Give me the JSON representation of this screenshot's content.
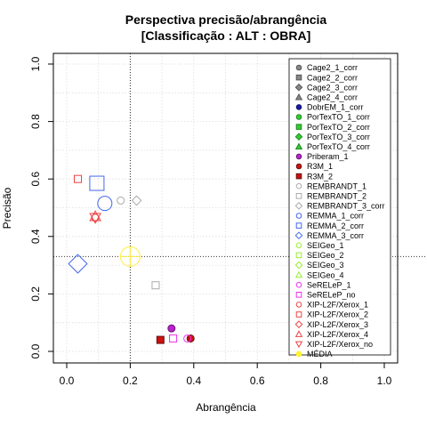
{
  "chart_data": {
    "type": "scatter",
    "title": "Perspectiva precisão/abrangência",
    "subtitle": "[Classificação : ALT : OBRA]",
    "xlabel": "Abrangência",
    "ylabel": "Precisão",
    "xlim": [
      0,
      1
    ],
    "ylim": [
      0,
      1
    ],
    "xticks": [
      "0.0",
      "0.2",
      "0.4",
      "0.6",
      "0.8",
      "1.0"
    ],
    "yticks": [
      "0.0",
      "0.2",
      "0.4",
      "0.6",
      "0.8",
      "1.0"
    ],
    "grid": true,
    "legend_position": "right",
    "reference_lines": {
      "x": 0.2,
      "y": 0.33
    },
    "series": [
      {
        "name": "Cage2_1_corr",
        "marker": "circle",
        "fill": "#888888",
        "stroke": "#555555",
        "points": []
      },
      {
        "name": "Cage2_2_corr",
        "marker": "square",
        "fill": "#888888",
        "stroke": "#555555",
        "points": []
      },
      {
        "name": "Cage2_3_corr",
        "marker": "diamond",
        "fill": "#888888",
        "stroke": "#555555",
        "points": []
      },
      {
        "name": "Cage2_4_corr",
        "marker": "triangle",
        "fill": "#888888",
        "stroke": "#555555",
        "points": []
      },
      {
        "name": "DobrEM_1_corr",
        "marker": "circle",
        "fill": "#1a1aa0",
        "stroke": "#101070",
        "points": []
      },
      {
        "name": "PorTexTO_1_corr",
        "marker": "circle",
        "fill": "#33cc33",
        "stroke": "#228822",
        "points": []
      },
      {
        "name": "PorTexTO_2_corr",
        "marker": "square",
        "fill": "#33cc33",
        "stroke": "#228822",
        "points": []
      },
      {
        "name": "PorTexTO_3_corr",
        "marker": "diamond",
        "fill": "#33cc33",
        "stroke": "#228822",
        "points": []
      },
      {
        "name": "PorTexTO_4_corr",
        "marker": "triangle",
        "fill": "#33cc33",
        "stroke": "#228822",
        "points": []
      },
      {
        "name": "Priberam_1",
        "marker": "circle",
        "fill": "#bb22cc",
        "stroke": "#661177",
        "points": [
          {
            "x": 0.33,
            "y": 0.08
          }
        ]
      },
      {
        "name": "R3M_1",
        "marker": "circle",
        "fill": "#cc1111",
        "stroke": "#661111",
        "points": [
          {
            "x": 0.39,
            "y": 0.045
          }
        ]
      },
      {
        "name": "R3M_2",
        "marker": "square",
        "fill": "#cc1111",
        "stroke": "#661111",
        "points": [
          {
            "x": 0.295,
            "y": 0.04
          }
        ]
      },
      {
        "name": "REMBRANDT_1",
        "marker": "circle",
        "fill": "none",
        "stroke": "#aaaaaa",
        "points": [
          {
            "x": 0.17,
            "y": 0.525
          }
        ]
      },
      {
        "name": "REMBRANDT_2",
        "marker": "square",
        "fill": "none",
        "stroke": "#aaaaaa",
        "points": [
          {
            "x": 0.28,
            "y": 0.23
          }
        ]
      },
      {
        "name": "REMBRANDT_3_corr",
        "marker": "diamond",
        "fill": "none",
        "stroke": "#aaaaaa",
        "points": [
          {
            "x": 0.22,
            "y": 0.525
          }
        ]
      },
      {
        "name": "REMMA_1_corr",
        "marker": "circle",
        "fill": "none",
        "stroke": "#4466ee",
        "points": [
          {
            "x": 0.12,
            "y": 0.515
          }
        ]
      },
      {
        "name": "REMMA_2_corr",
        "marker": "square",
        "fill": "none",
        "stroke": "#4466ee",
        "points": [
          {
            "x": 0.095,
            "y": 0.585
          }
        ]
      },
      {
        "name": "REMMA_3_corr",
        "marker": "diamond",
        "fill": "none",
        "stroke": "#4466ee",
        "points": [
          {
            "x": 0.035,
            "y": 0.305
          }
        ]
      },
      {
        "name": "SEIGeo_1",
        "marker": "circle",
        "fill": "none",
        "stroke": "#99ee33",
        "points": []
      },
      {
        "name": "SEIGeo_2",
        "marker": "square",
        "fill": "none",
        "stroke": "#99ee33",
        "points": []
      },
      {
        "name": "SEIGeo_3",
        "marker": "diamond",
        "fill": "none",
        "stroke": "#99ee33",
        "points": []
      },
      {
        "name": "SEIGeo_4",
        "marker": "triangle",
        "fill": "none",
        "stroke": "#99ee33",
        "points": []
      },
      {
        "name": "SeRELeP_1",
        "marker": "circle",
        "fill": "none",
        "stroke": "#ee33ee",
        "points": [
          {
            "x": 0.38,
            "y": 0.045
          }
        ]
      },
      {
        "name": "SeRELeP_no",
        "marker": "square",
        "fill": "none",
        "stroke": "#ee33ee",
        "points": [
          {
            "x": 0.335,
            "y": 0.045
          }
        ]
      },
      {
        "name": "XIP-L2F/Xerox_1",
        "marker": "circle",
        "fill": "none",
        "stroke": "#ee4444",
        "points": [
          {
            "x": 0.09,
            "y": 0.465
          }
        ]
      },
      {
        "name": "XIP-L2F/Xerox_2",
        "marker": "square",
        "fill": "none",
        "stroke": "#ee4444",
        "points": [
          {
            "x": 0.035,
            "y": 0.6
          }
        ]
      },
      {
        "name": "XIP-L2F/Xerox_3",
        "marker": "diamond",
        "fill": "none",
        "stroke": "#ee4444",
        "points": []
      },
      {
        "name": "XIP-L2F/Xerox_4",
        "marker": "triangle",
        "fill": "none",
        "stroke": "#ee4444",
        "points": [
          {
            "x": 0.09,
            "y": 0.47
          }
        ]
      },
      {
        "name": "XIP-L2F/Xerox_no",
        "marker": "triangle-down",
        "fill": "none",
        "stroke": "#ee4444",
        "points": [
          {
            "x": 0.09,
            "y": 0.465
          }
        ]
      },
      {
        "name": "MÉDIA",
        "marker": "circle-cross",
        "fill": "#ffff44",
        "stroke": "#ffee22",
        "points": []
      }
    ]
  }
}
